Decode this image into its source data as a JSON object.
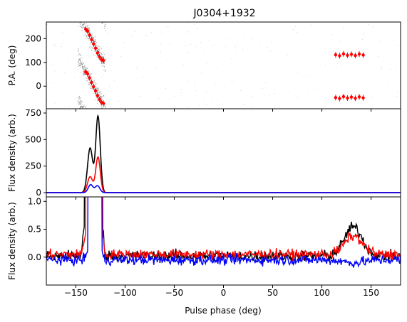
{
  "chart_data": {
    "type": "line",
    "title": "J0304+1932",
    "xlabel": "Pulse phase (deg)",
    "xlim": [
      -180,
      180
    ],
    "xticks": [
      -150,
      -100,
      -50,
      0,
      50,
      100,
      150
    ],
    "xtick_labels": [
      "−150",
      "−100",
      "−50",
      "0",
      "50",
      "100",
      "150"
    ],
    "panels": [
      {
        "id": "pa",
        "type": "scatter",
        "ylabel": "P.A. (deg)",
        "ylim": [
          -95,
          270
        ],
        "yticks": [
          0,
          100,
          200
        ],
        "ytick_labels": [
          "0",
          "100",
          "200"
        ],
        "grey_cloud": {
          "color": "#555555",
          "swing_centers": [
            -140,
            -126
          ],
          "phase_span": [
            -148,
            -120
          ],
          "pa_range": [
            -95,
            270
          ]
        },
        "series": [
          {
            "color": "#ff0000",
            "points": [
              {
                "x": -140,
                "y": 240
              },
              {
                "x": -138,
                "y": 232
              },
              {
                "x": -136,
                "y": 215
              },
              {
                "x": -134,
                "y": 196
              },
              {
                "x": -132,
                "y": 178
              },
              {
                "x": -130,
                "y": 160
              },
              {
                "x": -128,
                "y": 140
              },
              {
                "x": -126,
                "y": 124
              },
              {
                "x": -124,
                "y": 112
              },
              {
                "x": -122,
                "y": 108
              },
              {
                "x": -140,
                "y": 60
              },
              {
                "x": -138,
                "y": 52
              },
              {
                "x": -136,
                "y": 35
              },
              {
                "x": -134,
                "y": 16
              },
              {
                "x": -132,
                "y": -2
              },
              {
                "x": -130,
                "y": -20
              },
              {
                "x": -128,
                "y": -40
              },
              {
                "x": -126,
                "y": -56
              },
              {
                "x": -124,
                "y": -68
              },
              {
                "x": -122,
                "y": -72
              },
              {
                "x": 114,
                "y": 132
              },
              {
                "x": 118,
                "y": 128
              },
              {
                "x": 122,
                "y": 136
              },
              {
                "x": 126,
                "y": 130
              },
              {
                "x": 130,
                "y": 134
              },
              {
                "x": 134,
                "y": 129
              },
              {
                "x": 138,
                "y": 135
              },
              {
                "x": 142,
                "y": 131
              },
              {
                "x": 114,
                "y": -48
              },
              {
                "x": 118,
                "y": -52
              },
              {
                "x": 122,
                "y": -44
              },
              {
                "x": 126,
                "y": -50
              },
              {
                "x": 130,
                "y": -46
              },
              {
                "x": 134,
                "y": -51
              },
              {
                "x": 138,
                "y": -45
              },
              {
                "x": 142,
                "y": -49
              }
            ]
          }
        ]
      },
      {
        "id": "flux-full",
        "type": "line",
        "ylabel": "Flux density (arb.)",
        "ylim": [
          -40,
          790
        ],
        "yticks": [
          0,
          250,
          500,
          750
        ],
        "ytick_labels": [
          "0",
          "250",
          "500",
          "750"
        ],
        "series": [
          {
            "color": "#000000",
            "components": [
              {
                "center": -135.5,
                "amplitude": 420,
                "width": 2.6
              },
              {
                "center": -127.5,
                "amplitude": 720,
                "width": 2.3
              },
              {
                "center": 132,
                "amplitude": 0.5,
                "width": 9
              }
            ]
          },
          {
            "color": "#ff0000",
            "components": [
              {
                "center": -135.5,
                "amplitude": 150,
                "width": 2.6
              },
              {
                "center": -127.5,
                "amplitude": 335,
                "width": 2.3
              },
              {
                "center": 132,
                "amplitude": 0.35,
                "width": 9
              }
            ]
          },
          {
            "color": "#0000ff",
            "components": [
              {
                "center": -135,
                "amplitude": 75,
                "width": 2.4
              },
              {
                "center": -128,
                "amplitude": 65,
                "width": 2.4
              },
              {
                "center": 132,
                "amplitude": -0.15,
                "width": 10
              }
            ]
          }
        ]
      },
      {
        "id": "flux-zoom",
        "type": "line",
        "ylabel": "Flux density (arb.)",
        "ylim": [
          -0.5,
          1.08
        ],
        "yticks": [
          0.0,
          0.5,
          1.0
        ],
        "ytick_labels": [
          "0.0",
          "0.5",
          "1.0"
        ],
        "series": [
          {
            "color": "#000000",
            "noise": 0.05,
            "level": 0.02,
            "bump_center": 132,
            "bump_amplitude": 0.52,
            "bump_width": 9,
            "pulse_range": [
              -141,
              -123
            ],
            "pulse_edge_amplitude": 0.6
          },
          {
            "color": "#ff0000",
            "noise": 0.045,
            "level": 0.05,
            "bump_center": 132,
            "bump_amplitude": 0.33,
            "bump_width": 9,
            "pulse_range": [
              -140,
              -123
            ],
            "pulse_edge_amplitude": 0.4
          },
          {
            "color": "#0000ff",
            "noise": 0.045,
            "level": -0.05,
            "bump_center": 132,
            "bump_amplitude": -0.05,
            "bump_width": 10,
            "pulse_range": [
              -138,
              -124
            ],
            "pulse_edge_amplitude": 0.2
          }
        ]
      }
    ]
  }
}
